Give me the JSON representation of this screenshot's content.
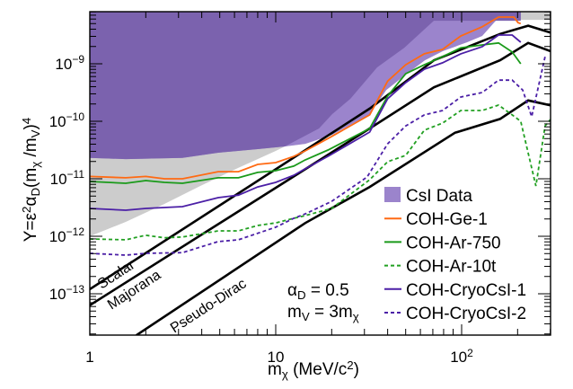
{
  "chart_data": {
    "type": "line",
    "title": "",
    "x_scale": "log",
    "y_scale": "log",
    "xlim": [
      1,
      300
    ],
    "ylim": [
      1.9e-14,
      8e-09
    ],
    "grid": false,
    "legend_placement": "bottom-right",
    "xlabel_parts": [
      {
        "t": "m",
        "s": "n"
      },
      {
        "t": "χ",
        "s": "sub"
      },
      {
        "t": " (MeV/c",
        "s": "n"
      },
      {
        "t": "2",
        "s": "sup"
      },
      {
        "t": ")",
        "s": "n"
      }
    ],
    "ylabel_parts": [
      {
        "t": "Y=ε",
        "s": "n"
      },
      {
        "t": "2",
        "s": "sup"
      },
      {
        "t": "α",
        "s": "n"
      },
      {
        "t": "D",
        "s": "sub"
      },
      {
        "t": "(m",
        "s": "n"
      },
      {
        "t": "χ",
        "s": "sub"
      },
      {
        "t": " /m",
        "s": "n"
      },
      {
        "t": "V",
        "s": "sub"
      },
      {
        "t": ")",
        "s": "n"
      },
      {
        "t": "4",
        "s": "sup"
      }
    ],
    "xticks": [
      {
        "value": 1,
        "base": "1",
        "exp": ""
      },
      {
        "value": 10,
        "base": "10",
        "exp": ""
      },
      {
        "value": 100,
        "base": "10",
        "exp": "2"
      }
    ],
    "yticks": [
      {
        "value": 1e-13,
        "base": "10",
        "exp": "−13"
      },
      {
        "value": 1e-12,
        "base": "10",
        "exp": "−12"
      },
      {
        "value": 1e-11,
        "base": "10",
        "exp": "−11"
      },
      {
        "value": 1e-10,
        "base": "10",
        "exp": "−10"
      },
      {
        "value": 1e-09,
        "base": "10",
        "exp": "−9"
      }
    ],
    "regions": {
      "gray_band_lower": [
        [
          1,
          1e-12
        ],
        [
          1.56,
          1.78e-12
        ],
        [
          2.52,
          3.65e-12
        ],
        [
          3.93,
          7.5e-12
        ],
        [
          6.27,
          1.54e-11
        ],
        [
          10,
          3.05e-11
        ],
        [
          11.2,
          3.65e-11
        ],
        [
          14.4,
          4.05e-11
        ],
        [
          20.1,
          5.8e-11
        ],
        [
          32.1,
          1.33e-10
        ],
        [
          39.3,
          3.5e-10
        ],
        [
          50.1,
          6.5e-10
        ],
        [
          63.4,
          1.15e-09
        ],
        [
          79.3,
          1.66e-09
        ],
        [
          107,
          2.37e-09
        ],
        [
          129,
          3.05e-09
        ],
        [
          154,
          5.8e-09
        ],
        [
          208,
          5.8e-09
        ],
        [
          300,
          5.8e-09
        ]
      ],
      "csi_light_lower": [
        [
          1,
          2.3e-11
        ],
        [
          1.56,
          2.2e-11
        ],
        [
          3.15,
          2.3e-11
        ],
        [
          4.9,
          2.84e-11
        ],
        [
          8.0,
          3.28e-11
        ],
        [
          11.2,
          3.65e-11
        ],
        [
          14.4,
          4.05e-11
        ],
        [
          20.1,
          5.8e-11
        ],
        [
          32.1,
          1.33e-10
        ],
        [
          39.3,
          3.5e-10
        ],
        [
          50.1,
          6.5e-10
        ],
        [
          63.4,
          1.15e-09
        ],
        [
          79.3,
          1.66e-09
        ],
        [
          107,
          2.37e-09
        ],
        [
          129,
          3.05e-09
        ],
        [
          154,
          5.8e-09
        ],
        [
          208,
          5.8e-09
        ]
      ],
      "csi_dark_lower": [
        [
          1,
          2.3e-11
        ],
        [
          1.56,
          2.2e-11
        ],
        [
          3.15,
          2.3e-11
        ],
        [
          4.9,
          2.84e-11
        ],
        [
          8.0,
          3.28e-11
        ],
        [
          11.2,
          3.65e-11
        ],
        [
          17.1,
          7.5e-11
        ],
        [
          20.1,
          1.33e-10
        ],
        [
          25.2,
          2.46e-10
        ],
        [
          35.1,
          8.65e-10
        ],
        [
          49.1,
          1.9e-09
        ],
        [
          70.8,
          5.6e-09
        ],
        [
          208,
          5.6e-09
        ]
      ]
    },
    "theory_lines": [
      {
        "label": "Scalar",
        "points": [
          [
            1,
            1.2e-13
          ],
          [
            32,
            1.66e-10
          ],
          [
            71,
            1.15e-09
          ],
          [
            161,
            3.3e-09
          ],
          [
            228,
            4.6e-09
          ],
          [
            300,
            3.5e-09
          ]
        ]
      },
      {
        "label": "Majorana",
        "points": [
          [
            1,
            6.3e-14
          ],
          [
            32,
            7.5e-11
          ],
          [
            71,
            3.9e-10
          ],
          [
            161,
            1.15e-09
          ],
          [
            228,
            2.3e-09
          ],
          [
            300,
            1.66e-09
          ]
        ]
      },
      {
        "label": "Pseudo-Dirac",
        "points": [
          [
            1.78,
            1.9e-14
          ],
          [
            14.4,
            1.7e-12
          ],
          [
            32,
            7.2e-12
          ],
          [
            92,
            6.3e-11
          ],
          [
            161,
            1.1e-10
          ],
          [
            228,
            2.3e-10
          ],
          [
            300,
            1.9e-10
          ]
        ]
      }
    ],
    "series": [
      {
        "name": "COH-Ge-1",
        "color": "#ff6a13",
        "dash": false,
        "points": [
          [
            1,
            1.1e-11
          ],
          [
            1.56,
            1.04e-11
          ],
          [
            2,
            1.1e-11
          ],
          [
            2.52,
            1e-11
          ],
          [
            3.15,
            1e-11
          ],
          [
            4.9,
            1.33e-11
          ],
          [
            6.3,
            1.33e-11
          ],
          [
            8,
            1.78e-11
          ],
          [
            10,
            1.91e-11
          ],
          [
            12.5,
            2.45e-11
          ],
          [
            14.4,
            3.05e-11
          ],
          [
            19.5,
            5.2e-11
          ],
          [
            32,
            1.29e-10
          ],
          [
            40,
            5e-10
          ],
          [
            50,
            9.6e-10
          ],
          [
            63,
            1.49e-09
          ],
          [
            79,
            1.78e-09
          ],
          [
            99,
            3.05e-09
          ],
          [
            129,
            4.4e-09
          ],
          [
            158,
            6.5e-09
          ],
          [
            191,
            6.5e-09
          ],
          [
            201,
            5.2e-09
          ],
          [
            208,
            5e-09
          ]
        ]
      },
      {
        "name": "COH-Ar-750",
        "color": "#1a9a1a",
        "dash": false,
        "points": [
          [
            1,
            8.97e-12
          ],
          [
            1.56,
            8.35e-12
          ],
          [
            2,
            9.3e-12
          ],
          [
            2.52,
            8.65e-12
          ],
          [
            3.15,
            8.35e-12
          ],
          [
            4.9,
            1.04e-11
          ],
          [
            6.3,
            1.04e-11
          ],
          [
            8,
            1.29e-11
          ],
          [
            10,
            1.38e-11
          ],
          [
            12.5,
            1.66e-11
          ],
          [
            14.4,
            2.13e-11
          ],
          [
            19.1,
            3.16e-11
          ],
          [
            32,
            7.5e-11
          ],
          [
            40,
            2.74e-10
          ],
          [
            50,
            6.7e-10
          ],
          [
            63,
            9.6e-10
          ],
          [
            79,
            1.33e-09
          ],
          [
            99,
            1.9e-09
          ],
          [
            129,
            2.13e-09
          ],
          [
            158,
            2.3e-09
          ],
          [
            187,
            1.6e-09
          ],
          [
            208,
            1e-09
          ]
        ]
      },
      {
        "name": "COH-Ar-10t",
        "color": "#22a022",
        "dash": true,
        "points": [
          [
            1,
            8.97e-13
          ],
          [
            1.56,
            8.7e-13
          ],
          [
            2,
            1.04e-12
          ],
          [
            2.52,
            9.4e-13
          ],
          [
            3.15,
            9.7e-13
          ],
          [
            4.9,
            1.24e-12
          ],
          [
            6.3,
            1.24e-12
          ],
          [
            8,
            1.54e-12
          ],
          [
            10,
            1.71e-12
          ],
          [
            12.5,
            2.05e-12
          ],
          [
            14.4,
            2.29e-12
          ],
          [
            20,
            3.05e-12
          ],
          [
            32,
            9.6e-12
          ],
          [
            40,
            1.98e-11
          ],
          [
            50,
            2.55e-11
          ],
          [
            63,
            7e-11
          ],
          [
            79,
            9.3e-11
          ],
          [
            99,
            1.54e-10
          ],
          [
            129,
            1.54e-10
          ],
          [
            158,
            1.91e-10
          ],
          [
            187,
            1.29e-10
          ],
          [
            208,
            1e-10
          ],
          [
            251,
            7.5e-12
          ],
          [
            281,
            8.3e-11
          ],
          [
            300,
            1.07e-10
          ]
        ]
      },
      {
        "name": "COH-CryoCsI-1",
        "color": "#4b1fa6",
        "dash": false,
        "points": [
          [
            1,
            3.05e-12
          ],
          [
            1.56,
            2.84e-12
          ],
          [
            2,
            3.05e-12
          ],
          [
            3.15,
            3.28e-12
          ],
          [
            4.9,
            4.7e-12
          ],
          [
            6.3,
            5.2e-12
          ],
          [
            8,
            7.2e-12
          ],
          [
            10,
            8.65e-12
          ],
          [
            12.5,
            1.15e-11
          ],
          [
            14.4,
            1.49e-11
          ],
          [
            19.5,
            2.55e-11
          ],
          [
            32,
            6.5e-11
          ],
          [
            40,
            2.46e-10
          ],
          [
            50,
            4.7e-10
          ],
          [
            63,
            8.05e-10
          ],
          [
            79,
            1.04e-09
          ],
          [
            99,
            1.49e-09
          ],
          [
            129,
            1.98e-09
          ],
          [
            158,
            3.16e-09
          ],
          [
            187,
            3.16e-09
          ],
          [
            208,
            2.37e-09
          ]
        ]
      },
      {
        "name": "COH-CryoCsI-2",
        "color": "#4b1fa6",
        "dash": true,
        "points": [
          [
            1,
            5.05e-13
          ],
          [
            1.56,
            4.7e-13
          ],
          [
            2,
            5.05e-13
          ],
          [
            3.15,
            5.2e-13
          ],
          [
            4.9,
            8.1e-13
          ],
          [
            6.3,
            8.7e-13
          ],
          [
            10,
            1.44e-12
          ],
          [
            12.5,
            2.05e-12
          ],
          [
            14.4,
            2.45e-12
          ],
          [
            20,
            4.05e-12
          ],
          [
            31,
            1.07e-11
          ],
          [
            40,
            4.05e-11
          ],
          [
            50,
            8.3e-11
          ],
          [
            63,
            1.29e-10
          ],
          [
            79,
            1.54e-10
          ],
          [
            99,
            2.64e-10
          ],
          [
            129,
            3.16e-10
          ],
          [
            158,
            5.2e-10
          ],
          [
            187,
            5.2e-10
          ],
          [
            213,
            3.5e-10
          ],
          [
            238,
            1.2e-10
          ],
          [
            281,
            1.33e-09
          ]
        ]
      }
    ],
    "legend": [
      {
        "label": "CsI Data",
        "type": "box",
        "color": "#9b84cc"
      },
      {
        "label": "COH-Ge-1",
        "type": "line",
        "color": "#ff6a13",
        "dash": false
      },
      {
        "label": "COH-Ar-750",
        "type": "line",
        "color": "#1a9a1a",
        "dash": false
      },
      {
        "label": "COH-Ar-10t",
        "type": "line",
        "color": "#22a022",
        "dash": true
      },
      {
        "label": "COH-CryoCsI-1",
        "type": "line",
        "color": "#4b1fa6",
        "dash": false
      },
      {
        "label": "COH-CryoCsI-2",
        "type": "line",
        "color": "#4b1fa6",
        "dash": true
      }
    ],
    "annotations": {
      "alpha": [
        {
          "t": "α",
          "s": "n"
        },
        {
          "t": "D",
          "s": "sub"
        },
        {
          "t": " = 0.5",
          "s": "n"
        }
      ],
      "mass": [
        {
          "t": "m",
          "s": "n"
        },
        {
          "t": "V",
          "s": "sub"
        },
        {
          "t": " = 3m",
          "s": "n"
        },
        {
          "t": "χ",
          "s": "sub"
        }
      ]
    },
    "colors": {
      "csi_dark": "#7b62ae",
      "csi_light": "#9b84cc",
      "gray_band": "#cccccc"
    }
  }
}
